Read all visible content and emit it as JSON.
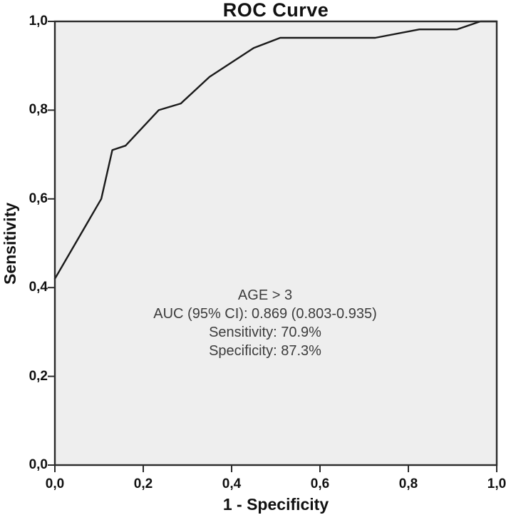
{
  "chart_data": {
    "type": "line",
    "title": "ROC Curve",
    "xlabel": "1 - Specificity",
    "ylabel": "Sensitivity",
    "xlim": [
      0,
      1
    ],
    "ylim": [
      0,
      1
    ],
    "grid": false,
    "legend": "none",
    "x_ticks": [
      0,
      0.2,
      0.4,
      0.6,
      0.8,
      1.0
    ],
    "y_ticks": [
      0,
      0.2,
      0.4,
      0.6,
      0.8,
      1.0
    ],
    "x_tick_labels": [
      "0,0",
      "0,2",
      "0,4",
      "0,6",
      "0,8",
      "1,0"
    ],
    "y_tick_labels": [
      "0,0",
      "0,2",
      "0,4",
      "0,6",
      "0,8",
      "1,0"
    ],
    "series": [
      {
        "name": "ROC curve (AGE > 3)",
        "points": [
          [
            0.0,
            0.42
          ],
          [
            0.105,
            0.6
          ],
          [
            0.13,
            0.71
          ],
          [
            0.16,
            0.72
          ],
          [
            0.235,
            0.8
          ],
          [
            0.285,
            0.815
          ],
          [
            0.35,
            0.875
          ],
          [
            0.45,
            0.94
          ],
          [
            0.51,
            0.963
          ],
          [
            0.725,
            0.963
          ],
          [
            0.825,
            0.982
          ],
          [
            0.91,
            0.982
          ],
          [
            0.963,
            1.0
          ],
          [
            1.0,
            1.0
          ]
        ]
      }
    ],
    "annotation": {
      "line1": "AGE > 3",
      "line2": "AUC (95% CI): 0.869 (0.803-0.935)",
      "line3": "Sensitivity: 70.9%",
      "line4": "Specificity: 87.3%"
    }
  },
  "stats": {
    "cutoff": "AGE > 3",
    "auc": 0.869,
    "ci_low": 0.803,
    "ci_high": 0.935,
    "sensitivity_pct": 70.9,
    "specificity_pct": 87.3
  },
  "colors": {
    "background": "#ffffff",
    "plot_background": "#eeeeee",
    "curve": "#1a1a1a",
    "frame": "#2b2b2b",
    "axis_text": "#111111",
    "annotation_text": "#3c3c3c"
  }
}
